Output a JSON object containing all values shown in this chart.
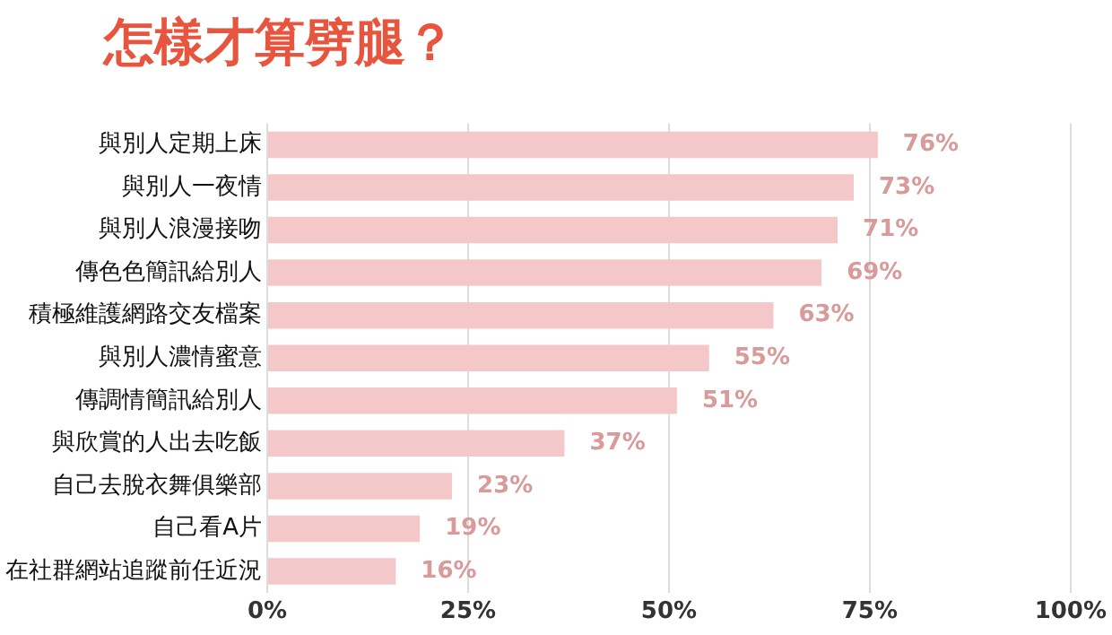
{
  "chart_data": {
    "type": "bar",
    "orientation": "horizontal",
    "title": "怎樣才算劈腿？",
    "categories": [
      "與別人定期上床",
      "與別人一夜情",
      "與別人浪漫接吻",
      "傳色色簡訊給別人",
      "積極維護網路交友檔案",
      "與別人濃情蜜意",
      "傳調情簡訊給別人",
      "與欣賞的人出去吃飯",
      "自己去脫衣舞俱樂部",
      "自己看A片",
      "在社群網站追蹤前任近況"
    ],
    "values": [
      76,
      73,
      71,
      69,
      63,
      55,
      51,
      37,
      23,
      19,
      16
    ],
    "value_labels": [
      "76%",
      "73%",
      "71%",
      "69%",
      "63%",
      "55%",
      "51%",
      "37%",
      "23%",
      "19%",
      "16%"
    ],
    "color": "#f4c8c8",
    "xlim": [
      0,
      100
    ],
    "xticks": [
      {
        "value": 0,
        "label": "0%"
      },
      {
        "value": 25,
        "label": "25%"
      },
      {
        "value": 50,
        "label": "50%"
      },
      {
        "value": 75,
        "label": "75%"
      },
      {
        "value": 100,
        "label": "100%"
      }
    ],
    "grid": "x",
    "legend": false
  }
}
